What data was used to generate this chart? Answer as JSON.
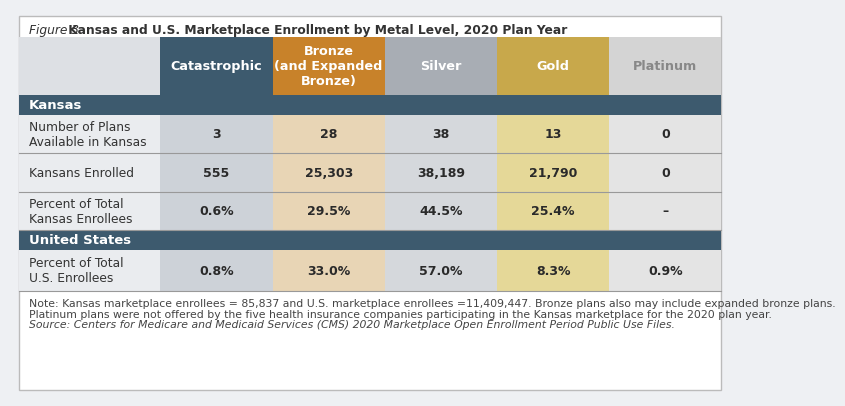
{
  "title_italic": "Figure 3.",
  "title_bold": " Kansas and U.S. Marketplace Enrollment by Metal Level, 2020 Plan Year",
  "col_headers": [
    "Catastrophic",
    "Bronze\n(and Expanded\nBronze)",
    "Silver",
    "Gold",
    "Platinum"
  ],
  "col_header_bg": [
    "#3d5a6e",
    "#c8822a",
    "#a8adb4",
    "#c8a84b",
    "#d4d4d4"
  ],
  "col_header_text_color": [
    "#ffffff",
    "#ffffff",
    "#ffffff",
    "#ffffff",
    "#888888"
  ],
  "section_header_bg": "#3d5a6e",
  "section_header_text": "#ffffff",
  "kansas_row_labels": [
    "Number of Plans\nAvailable in Kansas",
    "Kansans Enrolled",
    "Percent of Total\nKansas Enrollees"
  ],
  "us_row_labels": [
    "Percent of Total\nU.S. Enrollees"
  ],
  "kansas_rows": [
    [
      "3",
      "28",
      "38",
      "13",
      "0"
    ],
    [
      "555",
      "25,303",
      "38,189",
      "21,790",
      "0"
    ],
    [
      "0.6%",
      "29.5%",
      "44.5%",
      "25.4%",
      "–"
    ]
  ],
  "us_rows": [
    [
      "0.8%",
      "33.0%",
      "57.0%",
      "8.3%",
      "0.9%"
    ]
  ],
  "cell_bg": [
    "#cdd2d8",
    "#e8d5b5",
    "#d5d8dc",
    "#e5d898",
    "#e4e4e4"
  ],
  "label_bg": "#eaecef",
  "header_corner_bg": "#dde0e4",
  "cell_text_color": "#2a2a2a",
  "row_label_color": "#333333",
  "outer_bg": "#eef0f3",
  "inner_bg": "#ffffff",
  "border_color": "#bbbbbb",
  "divider_color": "#999999",
  "note_text": "Note: Kansas marketplace enrollees = 85,837 and U.S. marketplace enrollees =11,409,447. Bronze plans also may include expanded bronze plans.\nPlatinum plans were not offered by the five health insurance companies participating in the Kansas marketplace for the 2020 plan year.",
  "source_text": "Source: Centers for Medicare and Medicaid Services (CMS) 2020 Marketplace Open Enrollment Period Public Use Files.",
  "font_size_title": 8.8,
  "font_size_header": 9.2,
  "font_size_section": 9.5,
  "font_size_cell": 9.0,
  "font_size_label": 8.8,
  "font_size_note": 7.8
}
